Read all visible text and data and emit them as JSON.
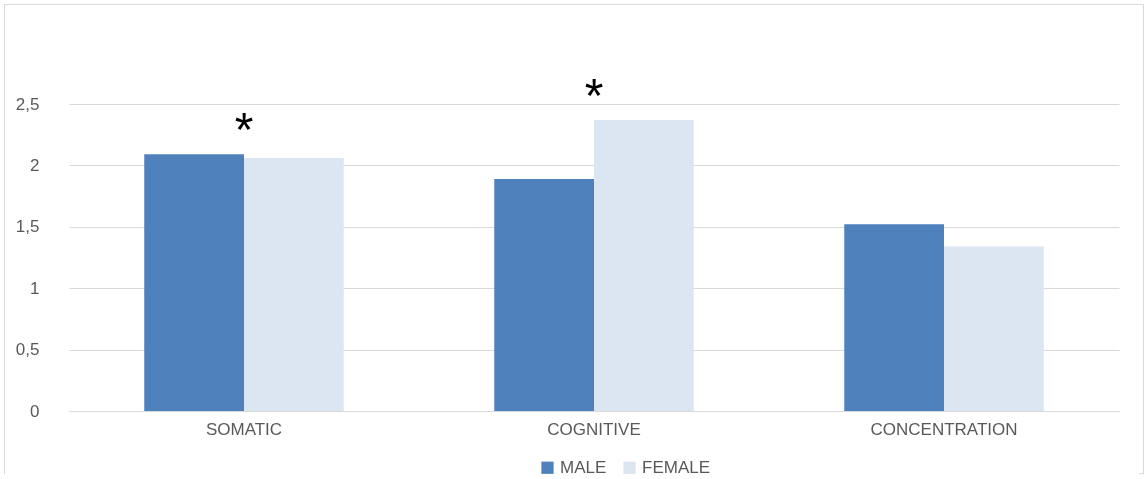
{
  "chart_data": {
    "type": "bar",
    "categories": [
      "SOMATIC",
      "COGNITIVE",
      "CONCENTRATION"
    ],
    "series": [
      {
        "name": "MALE",
        "color": "#4f81bd",
        "values": [
          2.09,
          1.89,
          1.52
        ]
      },
      {
        "name": "FEMALE",
        "color": "#dce6f2",
        "values": [
          2.06,
          2.37,
          1.34
        ]
      }
    ],
    "ylim": [
      0,
      2.5
    ],
    "yticks": [
      0,
      {
        "value": 0.5,
        "label": "0,5"
      },
      1,
      {
        "value": 1.5,
        "label": "1,5"
      },
      2,
      {
        "value": 2.5,
        "label": "2,5"
      }
    ],
    "grid": "y",
    "legend": "bottom",
    "annotations": [
      "*",
      "*"
    ]
  }
}
